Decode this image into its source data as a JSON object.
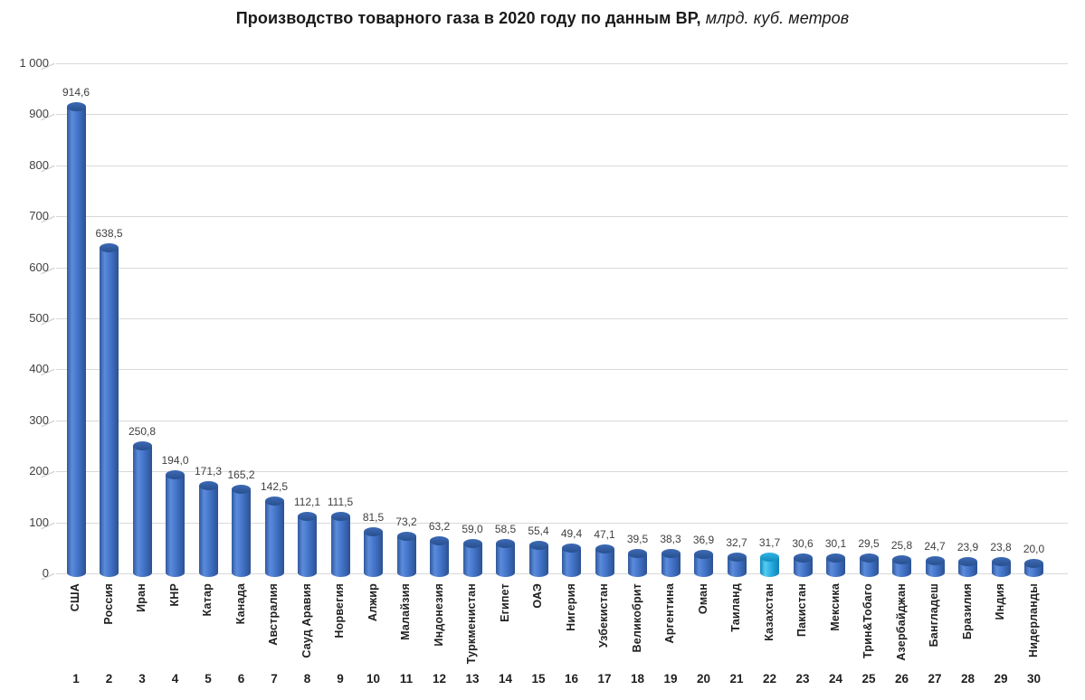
{
  "title": {
    "main": "Производство товарного газа в 2020 году по данным BP,",
    "unit": " млрд. куб. метров"
  },
  "chart_data": {
    "type": "bar",
    "title": "Производство товарного газа в 2020 году по данным BP, млрд. куб. метров",
    "xlabel": "",
    "ylabel": "",
    "ylim": [
      0,
      1000
    ],
    "grid": true,
    "style": "3d-cylinder",
    "categories": [
      "США",
      "Россия",
      "Иран",
      "КНР",
      "Катар",
      "Канада",
      "Австралия",
      "Сауд Аравия",
      "Норвегия",
      "Алжир",
      "Малайзия",
      "Индонезия",
      "Туркменистан",
      "Египет",
      "ОАЭ",
      "Нигерия",
      "Узбекистан",
      "Великобрит",
      "Аргентина",
      "Оман",
      "Таиланд",
      "Казахстан",
      "Пакистан",
      "Мексика",
      "Трин&Тобаго",
      "Азербайджан",
      "Бангладеш",
      "Бразилия",
      "Индия",
      "Нидерланды"
    ],
    "ranks": [
      "1",
      "2",
      "3",
      "4",
      "5",
      "6",
      "7",
      "8",
      "9",
      "10",
      "11",
      "12",
      "13",
      "14",
      "15",
      "16",
      "17",
      "18",
      "19",
      "20",
      "21",
      "22",
      "23",
      "24",
      "25",
      "26",
      "27",
      "28",
      "29",
      "30"
    ],
    "values": [
      914.6,
      638.5,
      250.8,
      194.0,
      171.3,
      165.2,
      142.5,
      112.1,
      111.5,
      81.5,
      73.2,
      63.2,
      59.0,
      58.5,
      55.4,
      49.4,
      47.1,
      39.5,
      38.3,
      36.9,
      32.7,
      31.7,
      30.6,
      30.1,
      29.5,
      25.8,
      24.7,
      23.9,
      23.8,
      20.0
    ],
    "value_labels": [
      "914,6",
      "638,5",
      "250,8",
      "194,0",
      "171,3",
      "165,2",
      "142,5",
      "112,1",
      "111,5",
      "81,5",
      "73,2",
      "63,2",
      "59,0",
      "58,5",
      "55,4",
      "49,4",
      "47,1",
      "39,5",
      "38,3",
      "36,9",
      "32,7",
      "31,7",
      "30,6",
      "30,1",
      "29,5",
      "25,8",
      "24,7",
      "23,9",
      "23,8",
      "20,0"
    ],
    "yticks": [
      {
        "value": 1000,
        "label": "1 000"
      },
      {
        "value": 900,
        "label": "900"
      },
      {
        "value": 800,
        "label": "800"
      },
      {
        "value": 700,
        "label": "700"
      },
      {
        "value": 600,
        "label": "600"
      },
      {
        "value": 500,
        "label": "500"
      },
      {
        "value": 400,
        "label": "400"
      },
      {
        "value": 300,
        "label": "300"
      },
      {
        "value": 200,
        "label": "200"
      },
      {
        "value": 100,
        "label": "100"
      },
      {
        "value": 0,
        "label": "0"
      }
    ],
    "highlight_index": 21,
    "highlight_category": "Казахстан",
    "colors": {
      "normal": {
        "edge": "#30599c",
        "light": "#5b8bdc",
        "mid": "#4070c4",
        "dark": "#2b5191",
        "top1": "#3d6ab5",
        "top2": "#28508f"
      },
      "highlight": {
        "edge": "#1285ba",
        "light": "#55cdf2",
        "mid": "#25aadd",
        "dark": "#1180b4",
        "top1": "#31b6e6",
        "top2": "#138abd"
      },
      "gridline": "#d9d9d9",
      "axis_text": "#404040",
      "label_text": "#3f3f3f",
      "category_text": "#1f1f1f"
    },
    "legend": null
  }
}
